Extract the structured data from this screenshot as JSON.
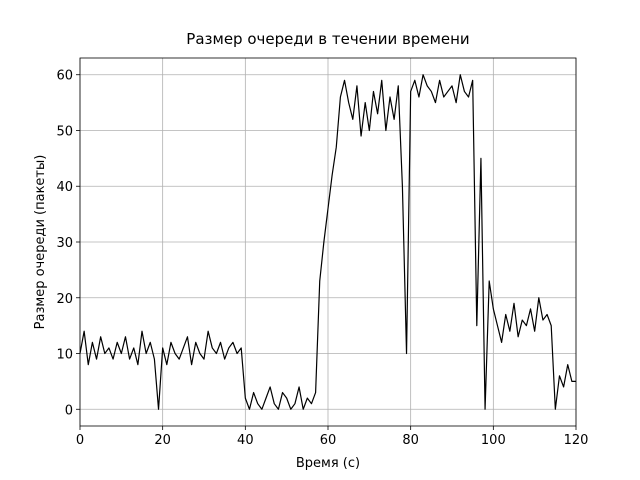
{
  "chart_data": {
    "type": "line",
    "title": "Размер очереди в течении времени",
    "xlabel": "Время (с)",
    "ylabel": "Размер очереди (пакеты)",
    "x": [
      0,
      1,
      2,
      3,
      4,
      5,
      6,
      7,
      8,
      9,
      10,
      11,
      12,
      13,
      14,
      15,
      16,
      17,
      18,
      19,
      20,
      21,
      22,
      23,
      24,
      25,
      26,
      27,
      28,
      29,
      30,
      31,
      32,
      33,
      34,
      35,
      36,
      37,
      38,
      39,
      40,
      41,
      42,
      43,
      44,
      45,
      46,
      47,
      48,
      49,
      50,
      51,
      52,
      53,
      54,
      55,
      56,
      57,
      58,
      59,
      60,
      61,
      62,
      63,
      64,
      65,
      66,
      67,
      68,
      69,
      70,
      71,
      72,
      73,
      74,
      75,
      76,
      77,
      78,
      79,
      80,
      81,
      82,
      83,
      84,
      85,
      86,
      87,
      88,
      89,
      90,
      91,
      92,
      93,
      94,
      95,
      96,
      97,
      98,
      99,
      100,
      101,
      102,
      103,
      104,
      105,
      106,
      107,
      108,
      109,
      110,
      111,
      112,
      113,
      114,
      115,
      116,
      117,
      118,
      119,
      120
    ],
    "series": [
      {
        "color": "#000000",
        "values": [
          10,
          14,
          8,
          12,
          9,
          13,
          10,
          11,
          9,
          12,
          10,
          13,
          9,
          11,
          8,
          14,
          10,
          12,
          9,
          0,
          11,
          8,
          12,
          10,
          9,
          11,
          13,
          8,
          12,
          10,
          9,
          14,
          11,
          10,
          12,
          9,
          11,
          12,
          10,
          11,
          2,
          0,
          3,
          1,
          0,
          2,
          4,
          1,
          0,
          3,
          2,
          0,
          1,
          4,
          0,
          2,
          1,
          3,
          23,
          30,
          36,
          42,
          47,
          56,
          59,
          55,
          52,
          58,
          49,
          55,
          50,
          57,
          53,
          59,
          50,
          56,
          52,
          58,
          40,
          10,
          57,
          59,
          56,
          60,
          58,
          57,
          55,
          59,
          56,
          57,
          58,
          55,
          60,
          57,
          56,
          59,
          15,
          45,
          0,
          23,
          18,
          15,
          12,
          17,
          14,
          19,
          13,
          16,
          15,
          18,
          14,
          20,
          16,
          17,
          15,
          0,
          6,
          4,
          8,
          5,
          5
        ]
      }
    ],
    "xlim": [
      0,
      120
    ],
    "ylim": [
      -3,
      63
    ],
    "xticks": [
      0,
      20,
      40,
      60,
      80,
      100,
      120
    ],
    "yticks": [
      0,
      10,
      20,
      30,
      40,
      50,
      60
    ],
    "grid": true
  }
}
